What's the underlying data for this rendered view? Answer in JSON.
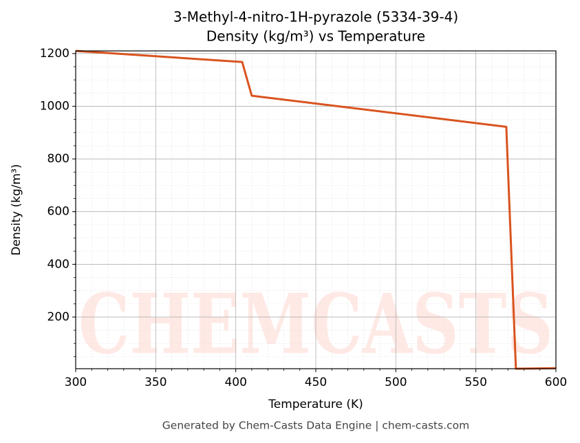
{
  "chart_data": {
    "type": "line",
    "title": "3-Methyl-4-nitro-1H-pyrazole (5334-39-4)",
    "subtitle": "Density (kg/m³) vs Temperature",
    "x_label": "Temperature (K)",
    "y_label": "Density (kg/m³)",
    "footer": "Generated by Chem-Casts Data Engine | chem-casts.com",
    "watermark": "CHEMCASTS",
    "x": [
      300,
      404,
      410,
      569,
      575,
      600
    ],
    "series": [
      {
        "name": "Density",
        "color": "#d9531e",
        "values": [
          1210,
          1168,
          1040,
          922,
          4,
          6
        ]
      }
    ],
    "xlim": [
      300,
      600
    ],
    "xticks": [
      300,
      350,
      400,
      450,
      500,
      550,
      600
    ],
    "ylim": [
      4,
      1210
    ],
    "yticks": [
      200,
      400,
      600,
      800,
      1000,
      1200
    ],
    "grid": true,
    "minor_grid": true
  }
}
